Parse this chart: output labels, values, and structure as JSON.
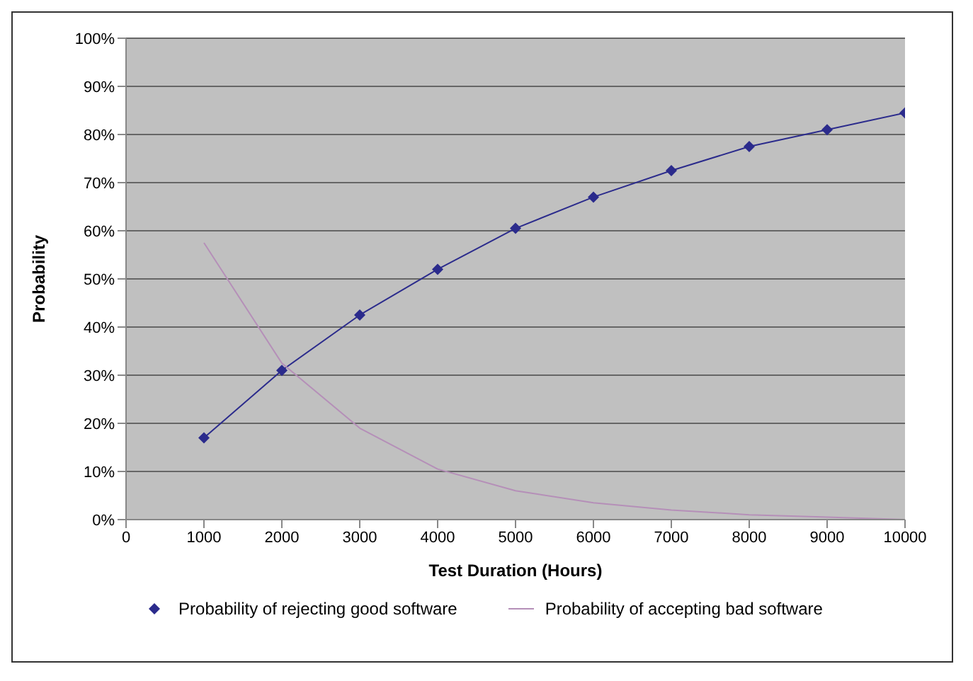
{
  "chart_data": {
    "type": "line",
    "xlabel": "Test Duration (Hours)",
    "ylabel": "Probability",
    "x": [
      1000,
      2000,
      3000,
      4000,
      5000,
      6000,
      7000,
      8000,
      9000,
      10000
    ],
    "series": [
      {
        "name": "Probability of rejecting good software",
        "color": "#2b2b8c",
        "marker": "diamond",
        "values": [
          17,
          31,
          42.5,
          52,
          60.5,
          67,
          72.5,
          77.5,
          81,
          84.5
        ]
      },
      {
        "name": "Probability of accepting bad software",
        "color": "#b58fb8",
        "marker": "none",
        "values": [
          57.5,
          32.5,
          19,
          10.5,
          6,
          3.5,
          2,
          1,
          0.5,
          0
        ]
      }
    ],
    "xlim": [
      0,
      10000
    ],
    "xticks": [
      0,
      1000,
      2000,
      3000,
      4000,
      5000,
      6000,
      7000,
      8000,
      9000,
      10000
    ],
    "ylim": [
      0,
      100
    ],
    "yticks": [
      {
        "value": 0,
        "label": "0%"
      },
      {
        "value": 10,
        "label": "10%"
      },
      {
        "value": 20,
        "label": "20%"
      },
      {
        "value": 30,
        "label": "30%"
      },
      {
        "value": 40,
        "label": "40%"
      },
      {
        "value": 50,
        "label": "50%"
      },
      {
        "value": 60,
        "label": "60%"
      },
      {
        "value": 70,
        "label": "70%"
      },
      {
        "value": 80,
        "label": "80%"
      },
      {
        "value": 90,
        "label": "90%"
      },
      {
        "value": 100,
        "label": "100%"
      }
    ],
    "grid": "y",
    "legend": "bottom"
  }
}
